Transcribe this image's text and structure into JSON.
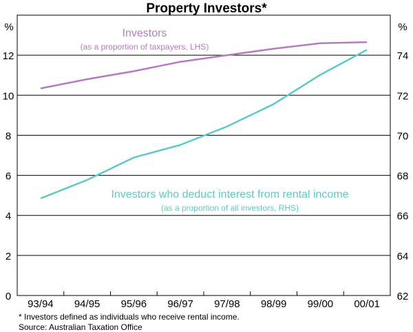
{
  "chart_data": {
    "type": "line",
    "title": "Property Investors*",
    "categories": [
      "93/94",
      "94/95",
      "95/96",
      "96/97",
      "97/98",
      "98/99",
      "99/00",
      "00/01"
    ],
    "left_axis": {
      "unit": "%",
      "ylim": [
        0,
        14
      ],
      "ticks": [
        0,
        2,
        4,
        6,
        8,
        10,
        12
      ]
    },
    "right_axis": {
      "unit": "%",
      "ylim": [
        62,
        76
      ],
      "ticks": [
        62,
        64,
        66,
        68,
        70,
        72,
        74
      ]
    },
    "grid": true,
    "series": [
      {
        "name": "Investors",
        "sublabel": "(as a proportion of taxpayers,  LHS)",
        "axis": "left",
        "color": "#b57bbf",
        "values": [
          10.34,
          10.8,
          11.2,
          11.67,
          12.0,
          12.32,
          12.6,
          12.65
        ]
      },
      {
        "name": "Investors who deduct interest from rental income",
        "sublabel": "(as a proportion of all investors,  RHS)",
        "axis": "right",
        "color": "#5cc8c8",
        "values": [
          66.85,
          67.77,
          68.89,
          69.52,
          70.44,
          71.56,
          73.02,
          74.27
        ]
      }
    ],
    "footnote": "* Investors defined as individuals who receive rental income.",
    "source": "Source: Australian Taxation Office"
  }
}
